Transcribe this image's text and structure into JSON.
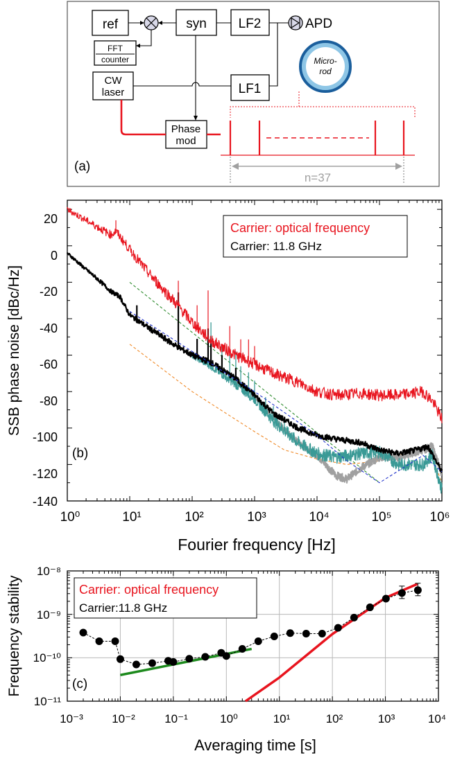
{
  "panel_a": {
    "label": "(a)",
    "blocks": {
      "ref": "ref",
      "syn": "syn",
      "lf2": "LF2",
      "lf1": "LF1",
      "fft": "FFT",
      "counter": "counter",
      "cw": "CW",
      "laser": "laser",
      "phase": "Phase",
      "mod": "mod",
      "apd": "APD",
      "micro": "Micro-",
      "rod": "rod"
    },
    "n_label": "n=37"
  },
  "panel_b": {
    "label": "(b)",
    "legend": [
      "Carrier: optical frequency",
      "Carrier: 11.8 GHz"
    ],
    "ylabel": "SSB phase noise [dBc/Hz]",
    "xlabel": "Fourier frequency [Hz]",
    "yticks": [
      "20",
      "0",
      "-20",
      "-40",
      "-60",
      "-80",
      "-100",
      "-120",
      "-140"
    ],
    "xticks": [
      "10⁰",
      "10¹",
      "10²",
      "10³",
      "10⁴",
      "10⁵",
      "10⁶"
    ]
  },
  "panel_c": {
    "label": "(c)",
    "legend": [
      "Carrier: optical frequency",
      "Carrier:11.8 GHz"
    ],
    "ylabel": "Frequency stability",
    "xlabel": "Averaging time [s]",
    "yticks": [
      "10⁻⁸",
      "10⁻⁹",
      "10⁻¹⁰",
      "10⁻¹¹"
    ],
    "xticks": [
      "10⁻³",
      "10⁻²",
      "10⁻¹",
      "10⁰",
      "10¹",
      "10²",
      "10³",
      "10⁴"
    ]
  },
  "colors": {
    "red": "#e8141e",
    "black": "#000000",
    "teal": "#3a9a96",
    "gray": "#a0a0a0",
    "green_dash": "#2e8b2e",
    "blue_dash": "#2233cc",
    "orange_dash": "#f08a28",
    "green": "#1d8a1d"
  },
  "chart_data": [
    {
      "type": "line",
      "xscale": "log",
      "xlim": [
        1,
        1000000
      ],
      "ylim": [
        -140,
        25
      ],
      "series": [
        {
          "name": "Carrier: optical frequency",
          "x": [
            1,
            2,
            5,
            6,
            10,
            20,
            50,
            100,
            200,
            500,
            1000,
            2000,
            5000,
            10000,
            20000,
            50000,
            100000,
            200000,
            500000,
            700000,
            1000000
          ],
          "y": [
            20,
            14,
            6,
            8,
            -2,
            -15,
            -30,
            -42,
            -52,
            -60,
            -65,
            -70,
            -75,
            -80,
            -82,
            -81,
            -82,
            -82,
            -80,
            -85,
            -95
          ]
        },
        {
          "name": "Carrier: 11.8 GHz",
          "x": [
            1,
            2,
            3,
            5,
            7,
            10,
            20,
            50,
            100,
            200,
            500,
            1000,
            2000,
            5000,
            10000,
            20000,
            50000,
            100000,
            200000,
            400000,
            600000,
            800000,
            1000000
          ],
          "y": [
            -4,
            -13,
            -18,
            -25,
            -28,
            -38,
            -45,
            -54,
            -60,
            -64,
            -73,
            -82,
            -92,
            -100,
            -104,
            -106,
            -108,
            -112,
            -114,
            -112,
            -110,
            -118,
            -124
          ]
        },
        {
          "x": [
            100,
            200,
            500,
            1000,
            2000,
            5000,
            10000,
            20000,
            50000,
            100000,
            200000,
            500000,
            700000,
            1000000
          ],
          "y": [
            -60,
            -66,
            -76,
            -84,
            -96,
            -108,
            -114,
            -116,
            -114,
            -113,
            -120,
            -120,
            -115,
            -134
          ]
        },
        {
          "x": [
            500,
            1000,
            2000,
            5000,
            10000,
            20000,
            30000,
            50000,
            100000,
            200000,
            500000,
            700000,
            1000000
          ],
          "y": [
            -75,
            -82,
            -95,
            -108,
            -115,
            -126,
            -128,
            -122,
            -116,
            -116,
            -112,
            -110,
            -125
          ]
        },
        {
          "x": [
            10,
            100000
          ],
          "y": [
            -20,
            -130
          ]
        },
        {
          "x": [
            10,
            100,
            1000,
            10000,
            30000,
            100000,
            500000,
            1000000
          ],
          "y": [
            -36,
            -58,
            -80,
            -104,
            -118,
            -130,
            -115,
            -124
          ]
        },
        {
          "x": [
            10,
            100,
            1000,
            3000,
            10000,
            30000,
            100000,
            600000,
            1000000
          ],
          "y": [
            -54,
            -80,
            -102,
            -112,
            -117,
            -120,
            -118,
            -110,
            -130
          ]
        }
      ]
    },
    {
      "type": "scatter",
      "xscale": "log",
      "yscale": "log",
      "xlim": [
        0.001,
        10000
      ],
      "ylim": [
        1e-11,
        1e-08
      ],
      "series": [
        {
          "name": "Carrier:11.8 GHz",
          "x": [
            0.002,
            0.004,
            0.008,
            0.01,
            0.02,
            0.04,
            0.08,
            0.1,
            0.2,
            0.4,
            0.8,
            1,
            2,
            4,
            8,
            16,
            32,
            64,
            128,
            256,
            512,
            1024,
            2048,
            4096
          ],
          "y": [
            3.8e-10,
            2.4e-10,
            2.4e-10,
            9.3e-11,
            7e-11,
            7.5e-11,
            8.5e-11,
            8e-11,
            9.5e-11,
            1.05e-10,
            1.3e-10,
            1.1e-10,
            1.6e-10,
            2.4e-10,
            3.1e-10,
            3.7e-10,
            3.6e-10,
            3.6e-10,
            4.9e-10,
            8.4e-10,
            1.45e-09,
            2.3e-09,
            3.1e-09,
            3.6e-09
          ]
        },
        {
          "name": "Carrier: optical frequency",
          "x": [
            2.3,
            10,
            100,
            1000,
            4000
          ],
          "y": [
            1e-11,
            3.5e-11,
            3.5e-10,
            2.4e-09,
            5e-09
          ]
        },
        {
          "x": [
            0.01,
            3
          ],
          "y": [
            4e-11,
            1.6e-10
          ]
        }
      ]
    }
  ]
}
